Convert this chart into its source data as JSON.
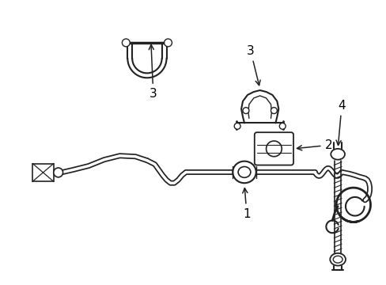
{
  "background_color": "#ffffff",
  "line_color": "#222222",
  "label_color": "#000000",
  "figsize": [
    4.89,
    3.6
  ],
  "dpi": 100,
  "label_fontsize": 11,
  "bar_lw_outer": 5.0,
  "bar_lw_inner": 2.5
}
